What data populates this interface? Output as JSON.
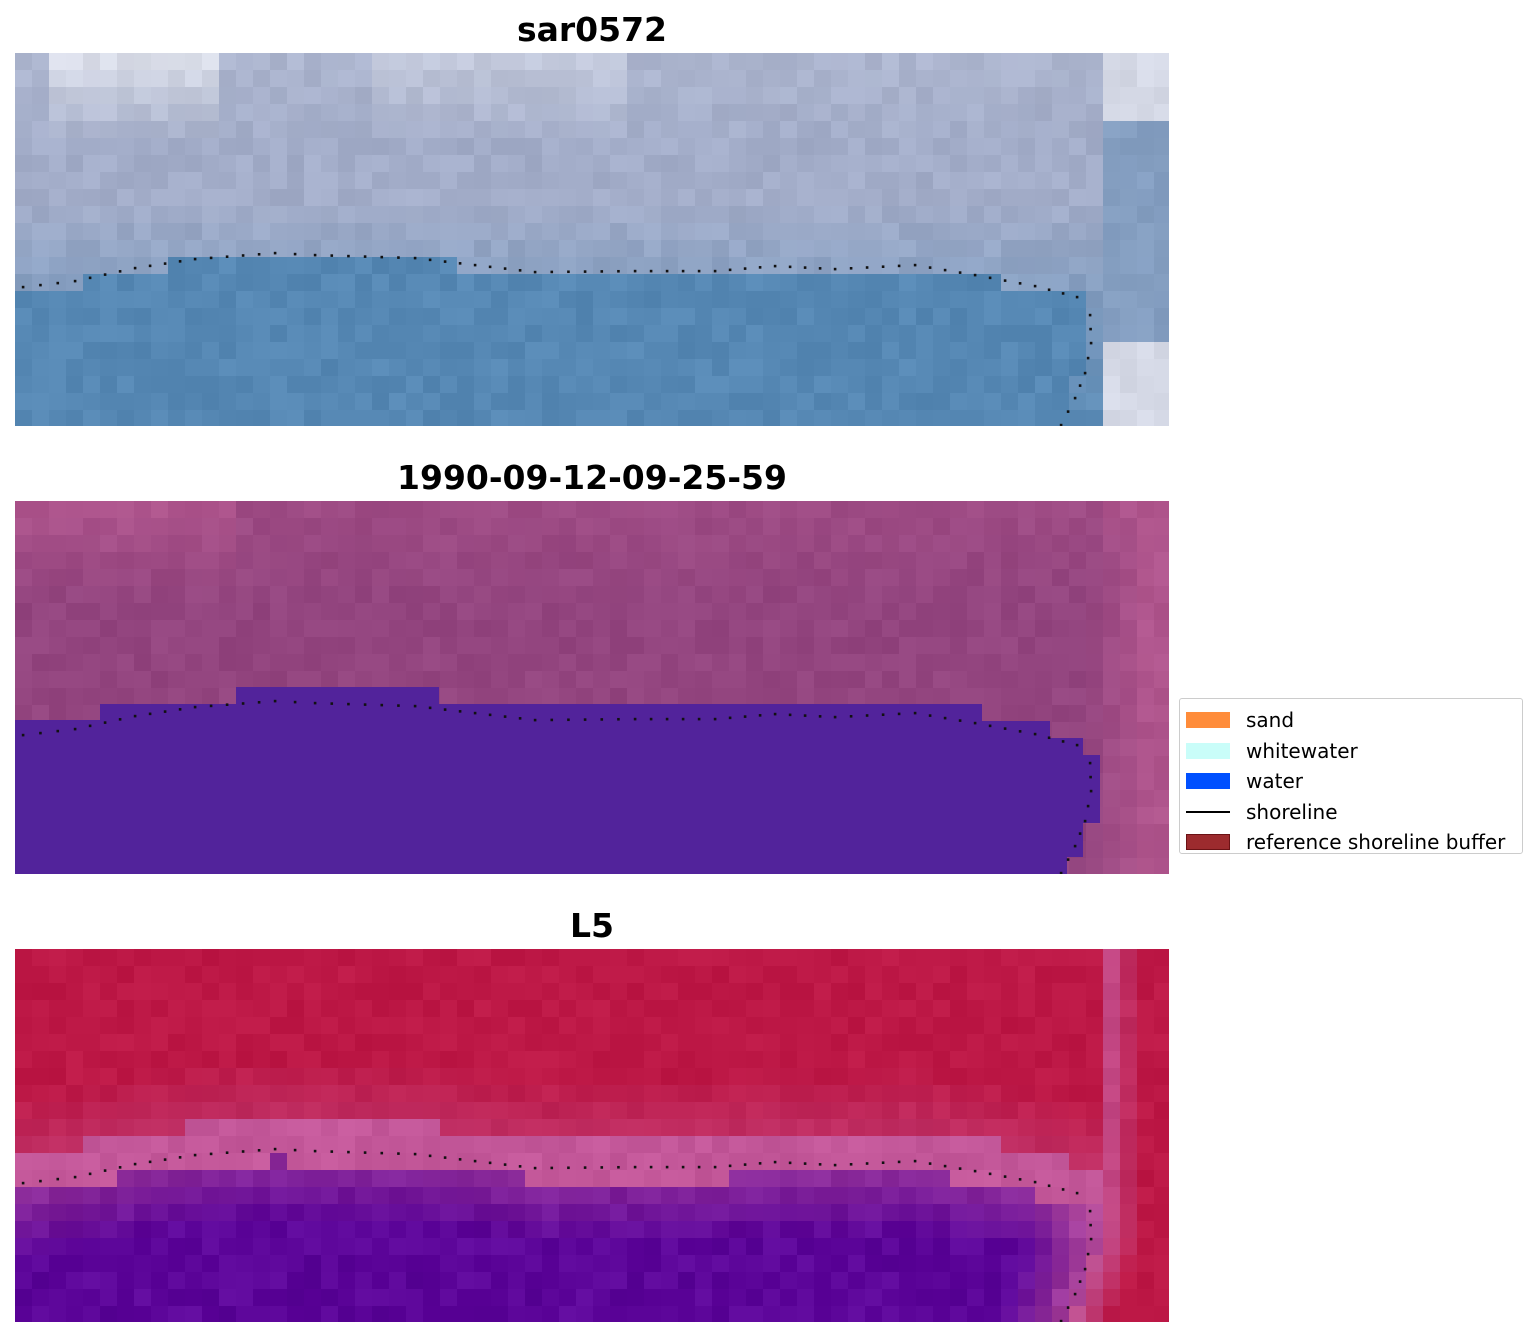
{
  "panels": [
    {
      "title": "sar0572",
      "style": "rgb"
    },
    {
      "title": "1990-09-12-09-25-59",
      "style": "classified"
    },
    {
      "title": "L5",
      "style": "index"
    }
  ],
  "legend": {
    "items": [
      {
        "label": "sand",
        "kind": "patch",
        "color": "#ff8c3a"
      },
      {
        "label": "whitewater",
        "kind": "patch",
        "color": "#c9fdf9"
      },
      {
        "label": "water",
        "kind": "patch",
        "color": "#0050ff"
      },
      {
        "label": "shoreline",
        "kind": "line",
        "color": "#000000"
      },
      {
        "label": "reference shoreline buffer",
        "kind": "patch",
        "color": "#9c2b2e",
        "edge": "#6b1215"
      }
    ]
  },
  "colors": {
    "sky_light": "#e6e8f0",
    "sky_mid": "#a3adc9",
    "water_rgb": "#5688b4",
    "land_classified": "#93457f",
    "water_classified": "#52239b",
    "index_high": "#bd1846",
    "index_mid": "#c4589a",
    "index_low": "#5c0599",
    "shoreline": "#111111"
  }
}
